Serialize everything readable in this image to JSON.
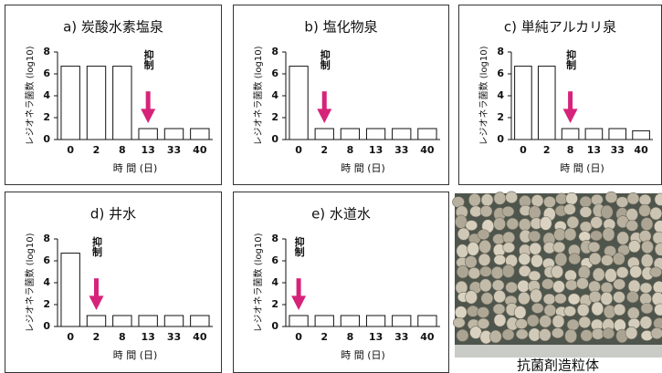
{
  "chart_data": [
    {
      "type": "bar",
      "title": "a) 炭酸水素塩泉",
      "y_label": "レジオネラ菌数 (log10)",
      "x_label": "時 間 (日)",
      "categories": [
        "0",
        "2",
        "8",
        "13",
        "33",
        "40"
      ],
      "values": [
        6.7,
        6.7,
        6.7,
        1,
        1,
        1
      ],
      "ylim": [
        0,
        8
      ],
      "yticks": [
        0,
        2,
        4,
        6,
        8
      ],
      "color": "#ffffff",
      "annotation": {
        "text": "抑制",
        "x": "13",
        "color": "#d6237a"
      }
    },
    {
      "type": "bar",
      "title": "b) 塩化物泉",
      "y_label": "レジオネラ菌数 (log10)",
      "x_label": "時 間 (日)",
      "categories": [
        "0",
        "2",
        "8",
        "13",
        "33",
        "40"
      ],
      "values": [
        6.7,
        1,
        1,
        1,
        1,
        1
      ],
      "ylim": [
        0,
        8
      ],
      "yticks": [
        0,
        2,
        4,
        6,
        8
      ],
      "color": "#ffffff",
      "annotation": {
        "text": "抑制",
        "x": "2",
        "color": "#d6237a"
      }
    },
    {
      "type": "bar",
      "title": "c) 単純アルカリ泉",
      "y_label": "レジオネラ菌数 (log10)",
      "x_label": "時 間 (日)",
      "categories": [
        "0",
        "2",
        "8",
        "13",
        "33",
        "40"
      ],
      "values": [
        6.7,
        6.7,
        1,
        1,
        1,
        0.8
      ],
      "ylim": [
        0,
        8
      ],
      "yticks": [
        0,
        2,
        4,
        6,
        8
      ],
      "color": "#ffffff",
      "annotation": {
        "text": "抑制",
        "x": "8",
        "color": "#d6237a"
      }
    },
    {
      "type": "bar",
      "title": "d) 井水",
      "y_label": "レジオネラ菌数 (log10)",
      "x_label": "時 間 (日)",
      "categories": [
        "0",
        "2",
        "8",
        "13",
        "33",
        "40"
      ],
      "values": [
        6.7,
        1,
        1,
        1,
        1,
        1
      ],
      "ylim": [
        0,
        8
      ],
      "yticks": [
        0,
        2,
        4,
        6,
        8
      ],
      "color": "#ffffff",
      "annotation": {
        "text": "抑制",
        "x": "2",
        "color": "#d6237a"
      }
    },
    {
      "type": "bar",
      "title": "e) 水道水",
      "y_label": "レジオネラ菌数 (log10)",
      "x_label": "時 間 (日)",
      "categories": [
        "0",
        "2",
        "8",
        "13",
        "33",
        "40"
      ],
      "values": [
        1,
        1,
        1,
        1,
        1,
        1
      ],
      "ylim": [
        0,
        8
      ],
      "yticks": [
        0,
        2,
        4,
        6,
        8
      ],
      "color": "#ffffff",
      "annotation": {
        "text": "抑制",
        "x": "0",
        "color": "#d6237a"
      }
    }
  ],
  "photo": {
    "caption": "抗菌剤造粒体"
  }
}
